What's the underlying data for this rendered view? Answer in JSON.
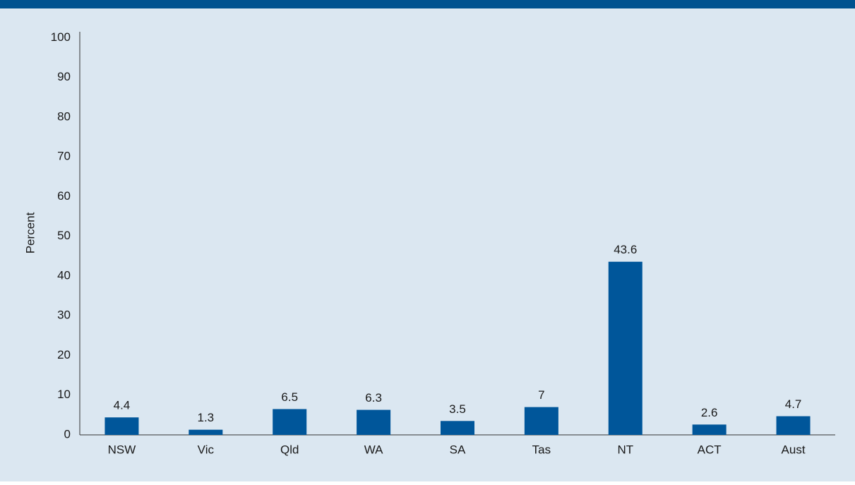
{
  "chart_data": {
    "type": "bar",
    "ylabel": "Percent",
    "categories": [
      "NSW",
      "Vic",
      "Qld",
      "WA",
      "SA",
      "Tas",
      "NT",
      "ACT",
      "Aust"
    ],
    "values": [
      4.4,
      1.3,
      6.5,
      6.3,
      3.5,
      7,
      43.6,
      2.6,
      4.7
    ],
    "color": "#00569a",
    "ylim": [
      0,
      100
    ],
    "yticks": [
      0,
      10,
      20,
      30,
      40,
      50,
      60,
      70,
      80,
      90,
      100
    ],
    "grid": false
  }
}
